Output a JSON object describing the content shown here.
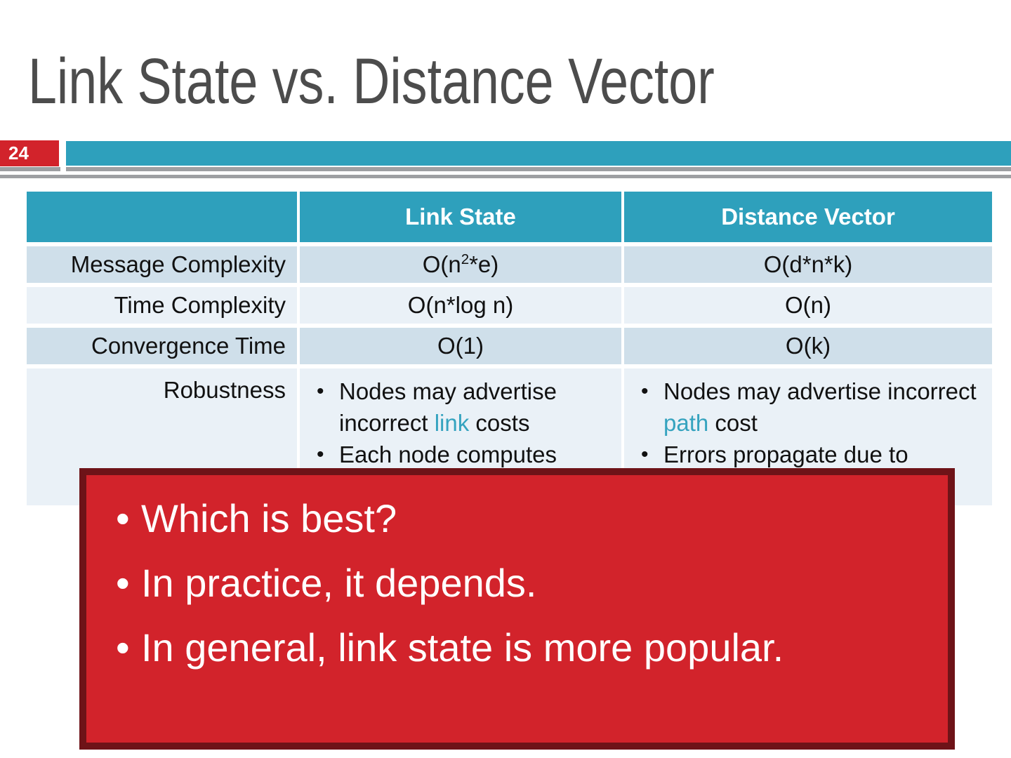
{
  "slide": {
    "title": "Link State vs. Distance Vector",
    "slide_number": "24"
  },
  "icons": {
    "bullet": "•"
  },
  "table": {
    "header": [
      "",
      "Link State",
      "Distance Vector"
    ],
    "rows": [
      {
        "label": "Message Complexity",
        "ls": {
          "pre": "O(n",
          "sup": "2",
          "post": "*e)"
        },
        "dv": "O(d*n*k)"
      },
      {
        "label": "Time Complexity",
        "ls": {
          "pre": "O(n*log n)",
          "sup": "",
          "post": ""
        },
        "dv": "O(n)"
      },
      {
        "label": "Convergence Time",
        "ls": {
          "pre": "O(1)",
          "sup": "",
          "post": ""
        },
        "dv": "O(k)"
      }
    ],
    "robustness": {
      "label": "Robustness",
      "link_state_bullets": [
        {
          "pre": "Nodes may advertise incorrect ",
          "hl": "link",
          "post": " costs"
        },
        {
          "pre": "Each node computes",
          "hl": "",
          "post": ""
        }
      ],
      "distance_vector_bullets": [
        {
          "pre": "Nodes may advertise incorrect ",
          "hl": "path",
          "post": " cost"
        },
        {
          "pre": "Errors propagate due to",
          "hl": "",
          "post": ""
        }
      ]
    }
  },
  "overlay": {
    "bullets": [
      "Which is best?",
      "In practice, it depends.",
      "In general, link state is more popular."
    ]
  },
  "colors": {
    "teal": "#2ea0bc",
    "red": "#d2232b",
    "maroon_border": "#6e1318",
    "row_dark": "#cfdfea",
    "row_light": "#eaf1f7",
    "title_gray": "#4c4c4c",
    "line_gray": "#9d9fa2",
    "table_text": "#111111",
    "highlight_teal": "#35a3bf",
    "background": "#ffffff"
  }
}
